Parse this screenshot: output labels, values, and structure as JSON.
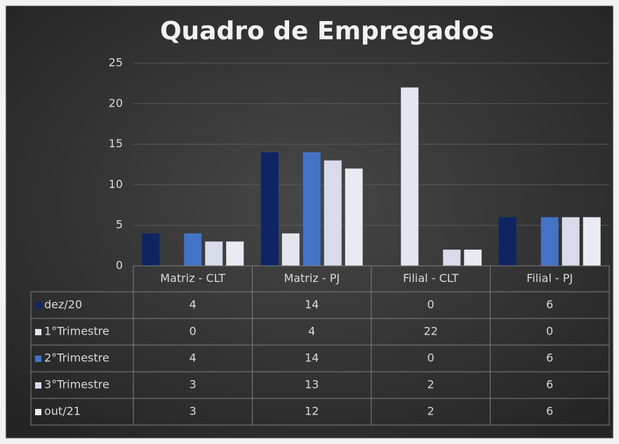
{
  "chart_data": {
    "type": "bar",
    "title": "Quadro de Empregados",
    "categories": [
      "Matriz - CLT",
      "Matriz - PJ",
      "Filial - CLT",
      "Filial - PJ"
    ],
    "series": [
      {
        "name": "dez/20",
        "color": "#0e2463",
        "values": [
          4,
          14,
          0,
          6
        ]
      },
      {
        "name": "1°Trimestre",
        "color": "#e4e6ef",
        "values": [
          0,
          4,
          22,
          0
        ]
      },
      {
        "name": "2°Trimestre",
        "color": "#4472c4",
        "values": [
          4,
          14,
          0,
          6
        ]
      },
      {
        "name": "3°Trimestre",
        "color": "#d8dbe9",
        "values": [
          3,
          13,
          2,
          6
        ]
      },
      {
        "name": "out/21",
        "color": "#e9ebf3",
        "values": [
          3,
          12,
          2,
          6
        ]
      }
    ],
    "ylim": [
      0,
      25
    ],
    "yticks": [
      0,
      5,
      10,
      15,
      20,
      25
    ],
    "grid": true,
    "data_table": true
  }
}
